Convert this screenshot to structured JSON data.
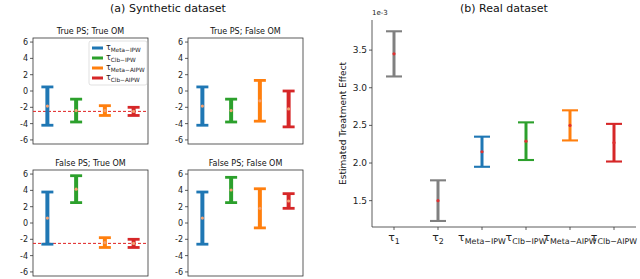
{
  "chart_data": [
    {
      "type": "errorbar",
      "suptitle": "(a) Synthetic dataset",
      "title": "True PS; True OM",
      "ylim": [
        -6.5,
        6.5
      ],
      "yticks": [
        -6,
        -4,
        -2,
        0,
        2,
        4,
        6
      ],
      "tick_labels": "y",
      "legend": "upper right",
      "true_effect": -2.5,
      "series": [
        {
          "name": "τMeta−IPW",
          "color": "#1f77b4",
          "values": [
            -1.85
          ],
          "errors": [
            2.35
          ]
        },
        {
          "name": "τClb−IPW",
          "color": "#2ca02c",
          "values": [
            -2.4
          ],
          "errors": [
            1.4
          ]
        },
        {
          "name": "τMeta−AIPW",
          "color": "#ff7f0e",
          "values": [
            -2.4
          ],
          "errors": [
            0.6
          ]
        },
        {
          "name": "τClb−AIPW",
          "color": "#d62728",
          "values": [
            -2.5
          ],
          "errors": [
            0.5
          ]
        }
      ]
    },
    {
      "type": "errorbar",
      "title": "True PS; False OM",
      "ylim": [
        -6.5,
        6.5
      ],
      "yticks": [
        -6,
        -4,
        -2,
        0,
        2,
        4,
        6
      ],
      "tick_labels": "y",
      "series": [
        {
          "color": "#1f77b4",
          "values": [
            -1.85
          ],
          "errors": [
            2.35
          ]
        },
        {
          "color": "#2ca02c",
          "values": [
            -2.4
          ],
          "errors": [
            1.4
          ]
        },
        {
          "color": "#ff7f0e",
          "values": [
            -1.2
          ],
          "errors": [
            2.5
          ]
        },
        {
          "color": "#d62728",
          "values": [
            -2.2
          ],
          "errors": [
            2.2
          ]
        }
      ]
    },
    {
      "type": "errorbar",
      "title": "False PS; True OM",
      "ylim": [
        -6.5,
        6.5
      ],
      "yticks": [
        -6,
        -4,
        -2,
        0,
        2,
        4,
        6
      ],
      "tick_labels": "y",
      "true_effect": -2.5,
      "series": [
        {
          "color": "#1f77b4",
          "values": [
            0.6
          ],
          "errors": [
            3.2
          ]
        },
        {
          "color": "#2ca02c",
          "values": [
            4.15
          ],
          "errors": [
            1.65
          ]
        },
        {
          "color": "#ff7f0e",
          "values": [
            -2.4
          ],
          "errors": [
            0.6
          ]
        },
        {
          "color": "#d62728",
          "values": [
            -2.5
          ],
          "errors": [
            0.5
          ]
        }
      ]
    },
    {
      "type": "errorbar",
      "title": "False PS; False OM",
      "ylim": [
        -6.5,
        6.5
      ],
      "yticks": [
        -6,
        -4,
        -2,
        0,
        2,
        4,
        6
      ],
      "tick_labels": "y",
      "series": [
        {
          "color": "#1f77b4",
          "values": [
            0.6
          ],
          "errors": [
            3.2
          ]
        },
        {
          "color": "#2ca02c",
          "values": [
            4.05
          ],
          "errors": [
            1.55
          ]
        },
        {
          "color": "#ff7f0e",
          "values": [
            1.8
          ],
          "errors": [
            2.4
          ]
        },
        {
          "color": "#d62728",
          "values": [
            2.7
          ],
          "errors": [
            0.9
          ]
        }
      ]
    },
    {
      "type": "errorbar",
      "title": "(b) Real dataset",
      "y_label": "Estimated Treatment Effect",
      "y_offset_text": "1e-3",
      "categories": [
        "τ1",
        "τ2",
        "τMeta−IPW",
        "τClb−IPW",
        "τMeta−AIPW",
        "τClb−AIPW"
      ],
      "ylim": [
        1.15,
        3.9
      ],
      "yticks": [
        1.5,
        {
          "value": 2,
          "label": "2.0"
        },
        2.5,
        {
          "value": 3,
          "label": "3.0"
        },
        3.5
      ],
      "values": [
        3.45,
        1.5,
        2.15,
        2.29,
        2.5,
        2.27
      ],
      "errors": [
        0.3,
        0.27,
        0.2,
        0.25,
        0.2,
        0.25
      ],
      "colors": [
        "#808080",
        "#808080",
        "#1f77b4",
        "#2ca02c",
        "#ff7f0e",
        "#d62728"
      ]
    }
  ]
}
